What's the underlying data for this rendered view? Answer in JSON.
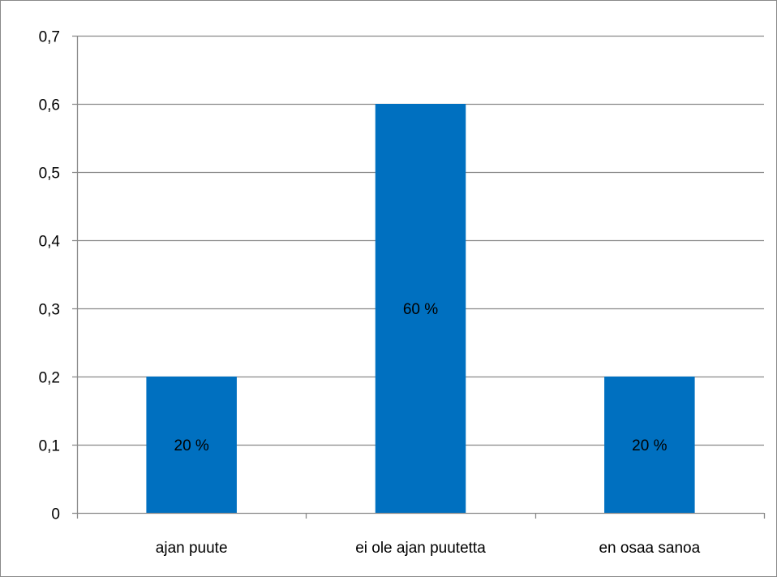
{
  "chart_data": {
    "type": "bar",
    "categories": [
      "ajan puute",
      "ei ole ajan puutetta",
      "en osaa sanoa"
    ],
    "values": [
      0.2,
      0.6,
      0.2
    ],
    "data_labels": [
      "20 %",
      "60 %",
      "20 %"
    ],
    "yticks": [
      "0",
      "0,1",
      "0,2",
      "0,3",
      "0,4",
      "0,5",
      "0,6",
      "0,7"
    ],
    "ylim": [
      0,
      0.7
    ],
    "grid": true,
    "legend": "none",
    "bar_color": "#0070C0",
    "gridline_color": "#898989"
  }
}
